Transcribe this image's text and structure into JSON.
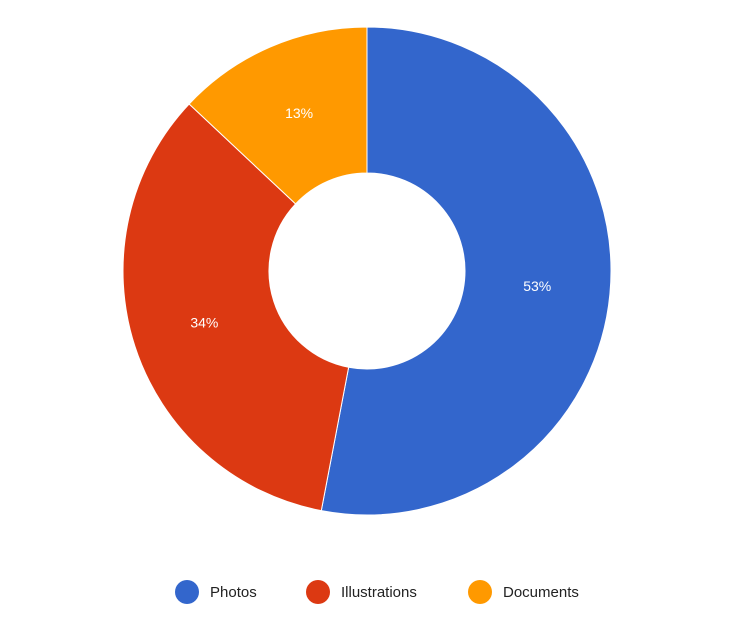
{
  "chart_data": {
    "type": "pie",
    "categories": [
      "Photos",
      "Illustrations",
      "Documents"
    ],
    "values": [
      53,
      34,
      13
    ],
    "value_labels": [
      "53%",
      "34%",
      "13%"
    ],
    "colors": [
      "#3366cc",
      "#dc3912",
      "#ff9900"
    ],
    "legend": "bottom"
  }
}
